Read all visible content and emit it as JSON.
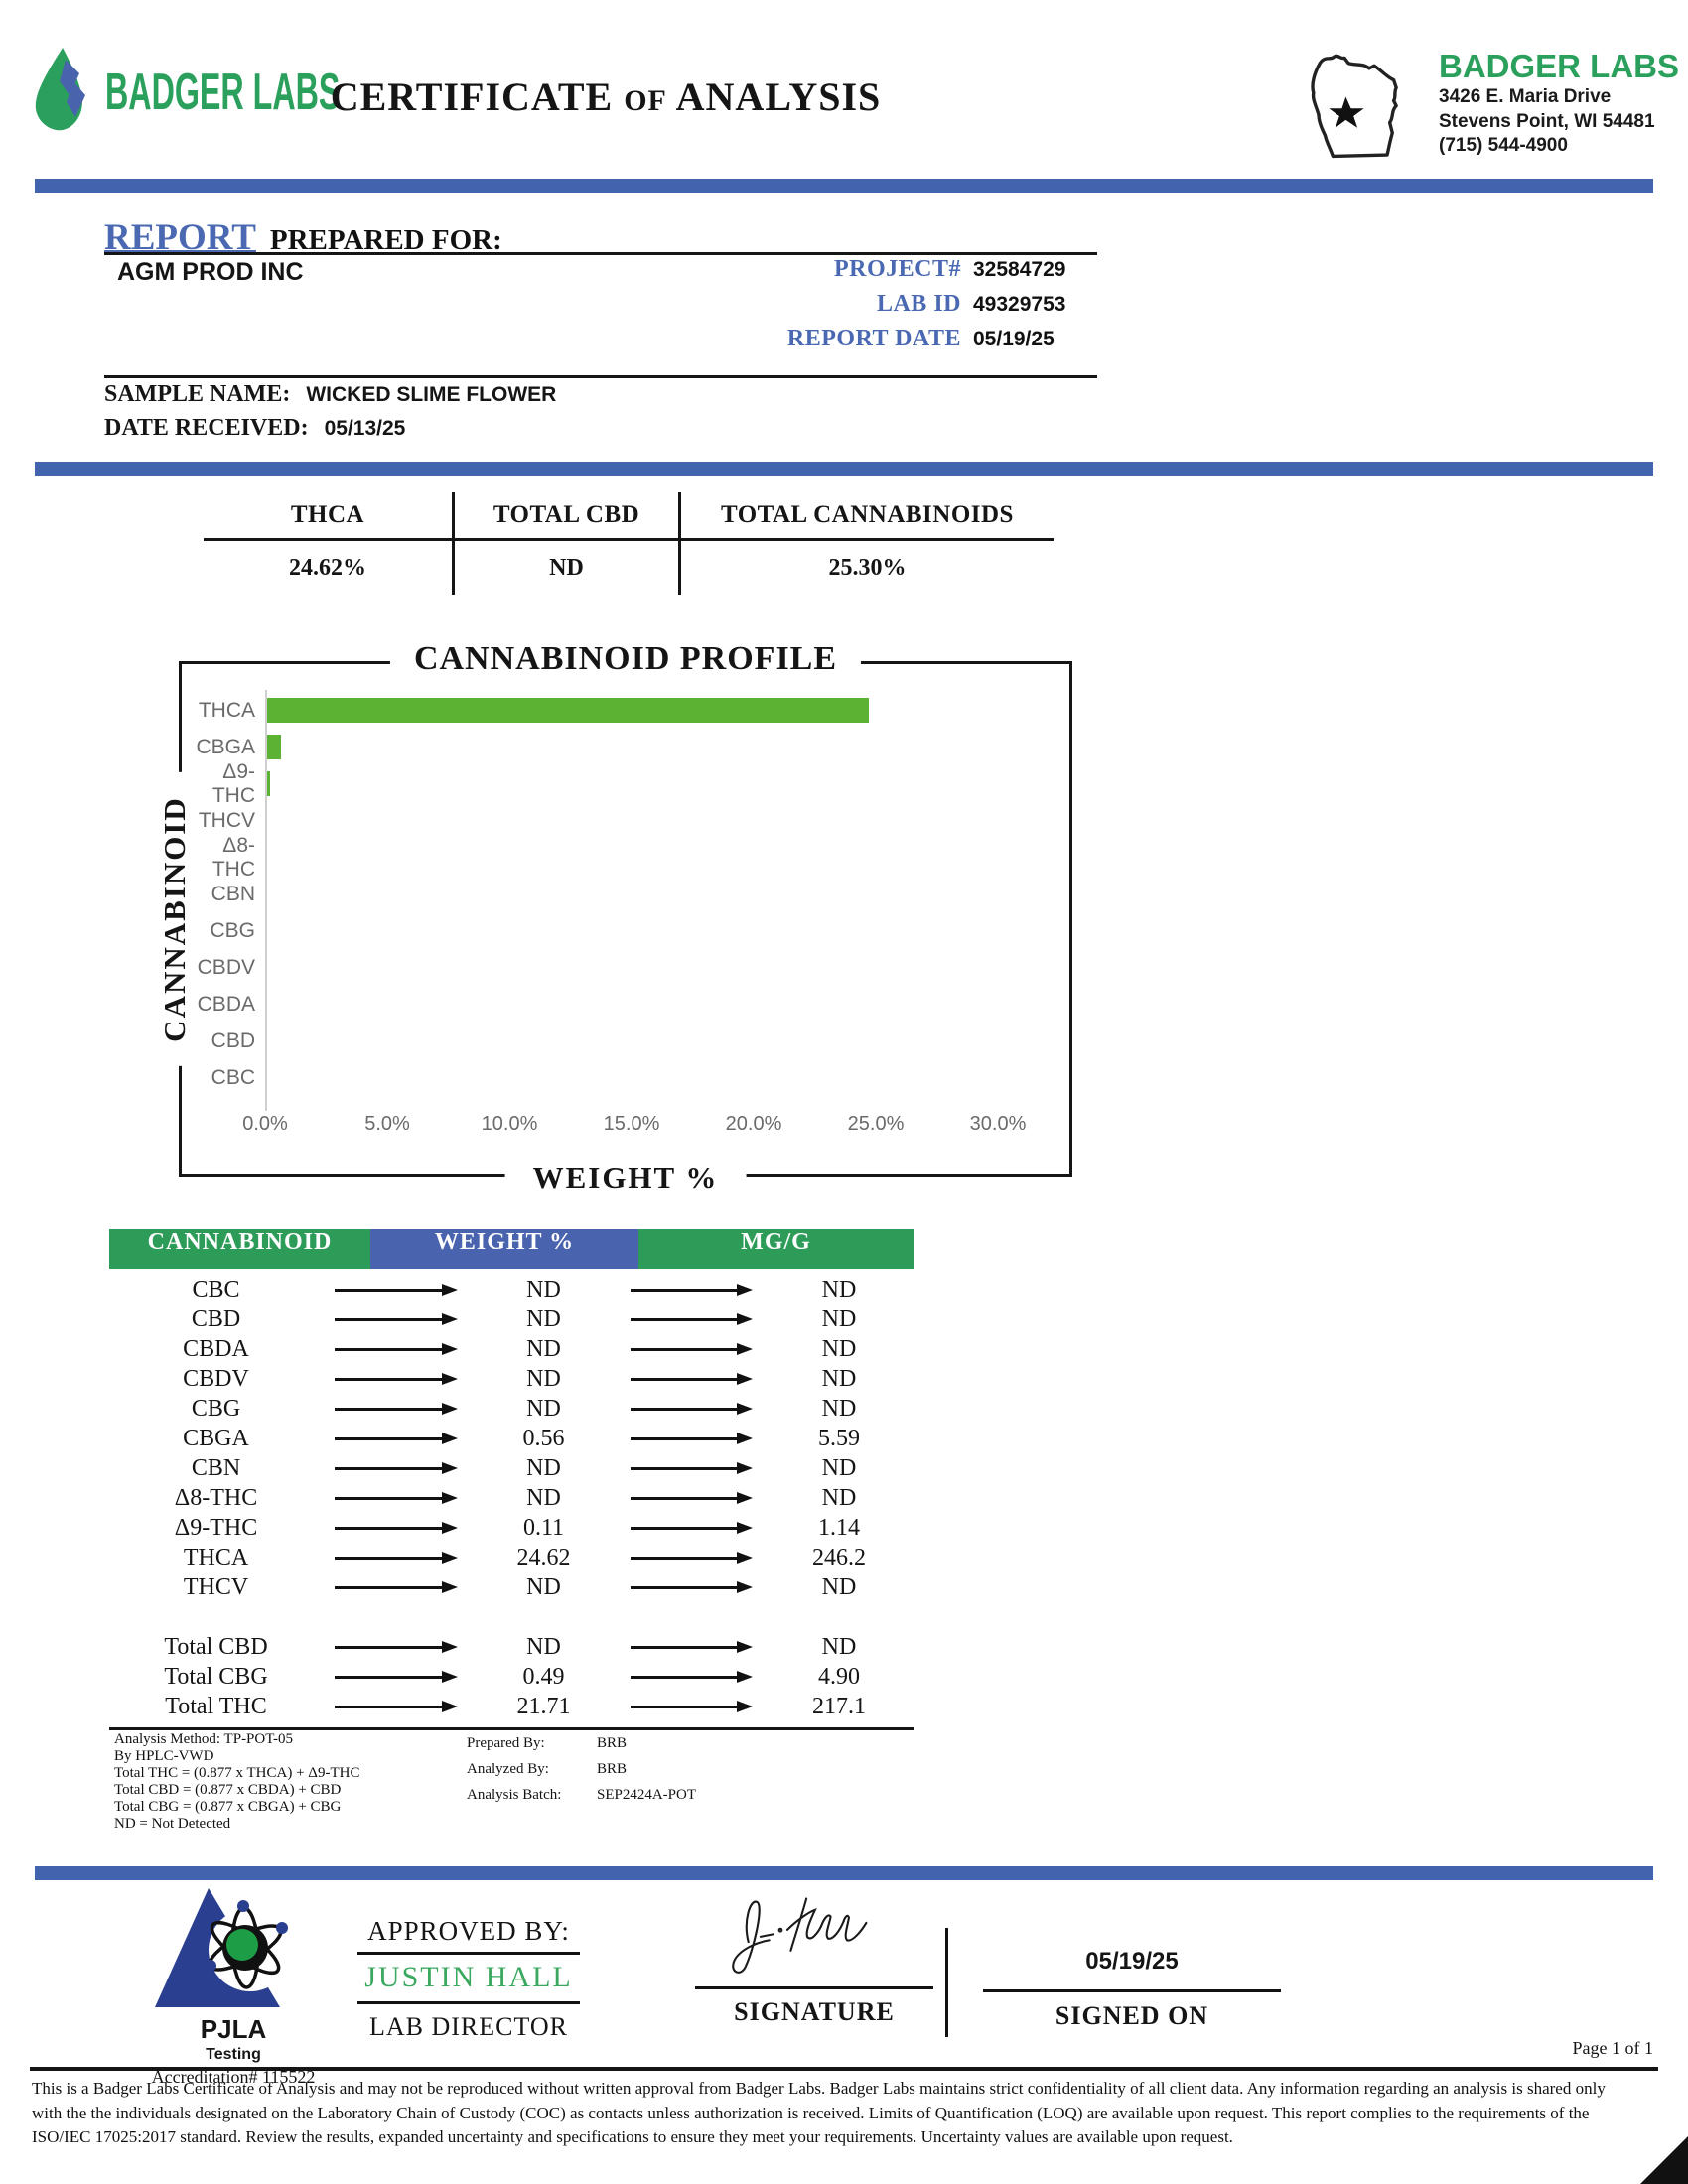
{
  "colors": {
    "accent_blue": "#4263ad",
    "brand_green": "#2aa05c",
    "bar_green": "#5cb233",
    "table_green": "#2e9c59",
    "table_blue": "#4a63ae",
    "approver_green": "#3aa85f"
  },
  "header": {
    "brand": "BADGER LABS",
    "title_word1": "CERTIFICATE",
    "title_of": "OF",
    "title_word2": "ANALYSIS",
    "badge_name": "BADGER LABS",
    "badge_address1": "3426 E. Maria Drive",
    "badge_address2": "Stevens Point, WI 54481",
    "badge_phone": "(715) 544-4900"
  },
  "report": {
    "report_label": "REPORT",
    "prepared_for_label": "PREPARED FOR:",
    "client": "AGM PROD INC",
    "project_label": "PROJECT#",
    "project_value": "32584729",
    "lab_id_label": "LAB ID",
    "lab_id_value": "49329753",
    "report_date_label": "REPORT DATE",
    "report_date_value": "05/19/25",
    "sample_name_label": "SAMPLE NAME:",
    "sample_name_value": "WICKED SLIME FLOWER",
    "date_received_label": "DATE RECEIVED:",
    "date_received_value": "05/13/25"
  },
  "summary": {
    "columns": [
      {
        "label": "THCA",
        "value": "24.62%"
      },
      {
        "label": "TOTAL CBD",
        "value": "ND"
      },
      {
        "label": "TOTAL CANNABINOIDS",
        "value": "25.30%"
      }
    ]
  },
  "chart_data": {
    "type": "bar",
    "orientation": "horizontal",
    "title": "CANNABINOID PROFILE",
    "xlabel": "WEIGHT %",
    "ylabel": "CANNABINOID",
    "categories": [
      "THCA",
      "CBGA",
      "Δ9-THC",
      "THCV",
      "Δ8-THC",
      "CBN",
      "CBG",
      "CBDV",
      "CBDA",
      "CBD",
      "CBC"
    ],
    "values": [
      24.62,
      0.56,
      0.11,
      0,
      0,
      0,
      0,
      0,
      0,
      0,
      0
    ],
    "xlim": [
      0,
      30
    ],
    "xticks": [
      "0.0%",
      "5.0%",
      "10.0%",
      "15.0%",
      "20.0%",
      "25.0%",
      "30.0%"
    ],
    "grid": false,
    "bar_color": "#5cb233"
  },
  "table": {
    "headers": [
      {
        "label": "CANNABINOID",
        "color": "#2e9c59"
      },
      {
        "label": "WEIGHT %",
        "color": "#4a63ae"
      },
      {
        "label": "MG/G",
        "color": "#2e9c59"
      }
    ],
    "rows": [
      {
        "name": "CBC",
        "weight": "ND",
        "mgg": "ND"
      },
      {
        "name": "CBD",
        "weight": "ND",
        "mgg": "ND"
      },
      {
        "name": "CBDA",
        "weight": "ND",
        "mgg": "ND"
      },
      {
        "name": "CBDV",
        "weight": "ND",
        "mgg": "ND"
      },
      {
        "name": "CBG",
        "weight": "ND",
        "mgg": "ND"
      },
      {
        "name": "CBGA",
        "weight": "0.56",
        "mgg": "5.59"
      },
      {
        "name": "CBN",
        "weight": "ND",
        "mgg": "ND"
      },
      {
        "name": "Δ8-THC",
        "weight": "ND",
        "mgg": "ND"
      },
      {
        "name": "Δ9-THC",
        "weight": "0.11",
        "mgg": "1.14"
      },
      {
        "name": "THCA",
        "weight": "24.62",
        "mgg": "246.2"
      },
      {
        "name": "THCV",
        "weight": "ND",
        "mgg": "ND"
      }
    ],
    "total_rows": [
      {
        "name": "Total CBD",
        "weight": "ND",
        "mgg": "ND"
      },
      {
        "name": "Total CBG",
        "weight": "0.49",
        "mgg": "4.90"
      },
      {
        "name": "Total THC",
        "weight": "21.71",
        "mgg": "217.1"
      }
    ]
  },
  "footnotes": {
    "left": [
      "Analysis Method: TP-POT-05",
      "By HPLC-VWD",
      "Total THC = (0.877 x  THCA) + Δ9-THC",
      "Total CBD = (0.877 x  CBDA) + CBD",
      "Total CBG = (0.877 x  CBGA) + CBG",
      "ND = Not Detected"
    ],
    "prepared_by_label": "Prepared By:",
    "prepared_by_value": "BRB",
    "analyzed_by_label": "Analyzed By:",
    "analyzed_by_value": "BRB",
    "analysis_batch_label": "Analysis Batch:",
    "analysis_batch_value": "SEP2424A-POT"
  },
  "footer": {
    "pjla_name": "PJLA",
    "pjla_sub": "Testing",
    "accreditation": "Accreditation# 115522",
    "approved_by_label": "APPROVED BY:",
    "approver_name": "JUSTIN HALL",
    "approver_title": "LAB DIRECTOR",
    "signature_label": "SIGNATURE",
    "signed_on_date": "05/19/25",
    "signed_on_label": "SIGNED ON",
    "page_label": "Page 1 of 1",
    "disclaimer": "This is a Badger Labs Certificate of Analysis and may not be reproduced without written approval from Badger Labs. Badger Labs maintains strict confidentiality of all client data. Any information regarding an analysis is shared only with the the individuals designated on the Laboratory Chain of Custody (COC) as contacts unless authorization is received. Limits of Quantification (LOQ) are available upon request. This report complies to the requirements of the ISO/IEC 17025:2017 standard. Review the results, expanded uncertainty and specifications to ensure they meet your requirements. Uncertainty values are available upon request."
  }
}
